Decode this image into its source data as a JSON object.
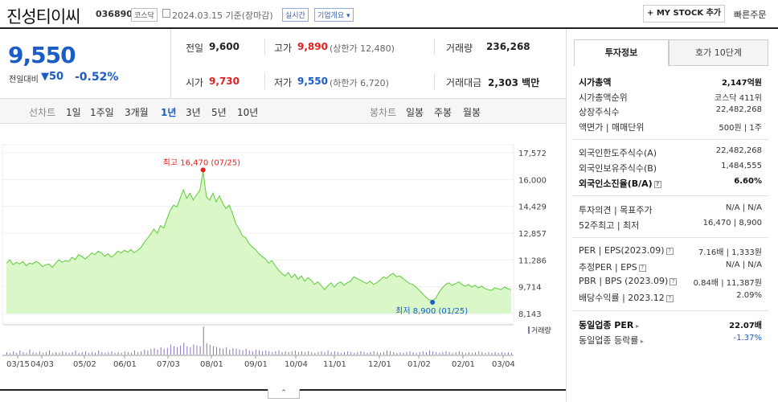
{
  "header": {
    "title": "진성티이씨",
    "code": "036890",
    "market_tag": "코스닥",
    "date": "2024.03.15",
    "date_suffix": "기준(장마감)",
    "realtime_tag": "실시간",
    "overview_dropdown": "기업개요",
    "my_stock_button": "+ MY STOCK 추가",
    "quick_order": "빠른주문"
  },
  "quote": {
    "price": "9,550",
    "change_label": "전일대비",
    "change_value": "50",
    "change_percent": "-0.52%",
    "prev_close_label": "전일",
    "prev_close": "9,600",
    "high_label": "고가",
    "high": "9,890",
    "upper_limit": "(상한가 12,480)",
    "volume_label": "거래량",
    "volume": "236,268",
    "open_label": "시가",
    "open": "9,730",
    "low_label": "저가",
    "low": "9,550",
    "lower_limit": "(하한가 6,720)",
    "amount_label": "거래대금",
    "amount": "2,303",
    "amount_unit": "백만"
  },
  "chart_tabs": {
    "line_chart_label": "선차트",
    "periods": [
      "1일",
      "1주일",
      "3개월",
      "1년",
      "3년",
      "5년",
      "10년"
    ],
    "selected": "1년",
    "candle_label": "봉차트",
    "candle_periods": [
      "일봉",
      "주봉",
      "월봉"
    ]
  },
  "chart_data": {
    "type": "area",
    "y_ticks": [
      "17,572",
      "16,000",
      "14,429",
      "12,857",
      "11,286",
      "9,714",
      "8,143"
    ],
    "ylim": [
      8143,
      17572
    ],
    "x_ticks": [
      "03/15",
      "04/03",
      "05/02",
      "06/01",
      "07/03",
      "08/01",
      "09/01",
      "10/04",
      "11/01",
      "12/01",
      "01/02",
      "02/01",
      "03/04"
    ],
    "high_annotation": "최고 16,470 (07/25)",
    "low_annotation": "최저 8,900 (01/25)",
    "high_value": 16470,
    "low_value": 8900,
    "volume_legend": "거래량",
    "series": [
      {
        "values": [
          11100,
          11300,
          11000,
          11150,
          11050,
          11200,
          10950,
          11100,
          11050,
          11200,
          11100,
          10900,
          11000,
          11050,
          10850,
          11100,
          11300,
          11150,
          11250,
          11200,
          11450,
          11300,
          11600,
          11500,
          11350,
          11500,
          11700,
          11600,
          11800,
          11700,
          11500,
          11650,
          11450,
          11600,
          11800,
          11700,
          11850,
          11750,
          11900,
          11700,
          11850,
          12000,
          12300,
          12550,
          12800,
          13100,
          12850,
          13300,
          13150,
          13700,
          14200,
          14500,
          14400,
          14900,
          15400,
          14900,
          15200,
          14800,
          15100,
          15350,
          16470,
          15000,
          14800,
          15200,
          14700,
          15050,
          14600,
          14300,
          14500,
          14000,
          13400,
          13100,
          12700,
          12600,
          12250,
          12050,
          11900,
          11650,
          11500,
          11350,
          11100,
          11250,
          10950,
          10700,
          10500,
          10350,
          10550,
          10250,
          10450,
          10150,
          10350,
          10050,
          10250,
          10100,
          9850,
          10000,
          9800,
          9550,
          9750,
          9950,
          9700,
          9900,
          10000,
          9800,
          9950,
          10050,
          10300,
          10200,
          10100,
          10000,
          9900,
          10050,
          9850,
          9950,
          10100,
          10300,
          10200,
          10400,
          10500,
          10300,
          10350,
          10200,
          10050,
          9900,
          9850,
          9700,
          9500,
          9300,
          9100,
          8950,
          8900,
          9050,
          9400,
          9650,
          9850,
          9950,
          9800,
          9900,
          10000,
          9850,
          9750,
          9850,
          9700,
          9800,
          9650,
          9750,
          9600,
          9550,
          9500,
          9650,
          9600,
          9550,
          9700,
          9600,
          9550
        ]
      }
    ],
    "volume": [
      3,
      2,
      4,
      2,
      5,
      3,
      2,
      6,
      3,
      2,
      4,
      2,
      3,
      5,
      2,
      3,
      2,
      4,
      3,
      2,
      3,
      5,
      2,
      3,
      4,
      2,
      3,
      2,
      5,
      3,
      2,
      3,
      4,
      2,
      3,
      2,
      4,
      3,
      2,
      5,
      3,
      4,
      6,
      5,
      7,
      8,
      6,
      9,
      7,
      8,
      12,
      10,
      9,
      11,
      14,
      10,
      9,
      12,
      11,
      10,
      34,
      14,
      12,
      10,
      9,
      8,
      7,
      9,
      6,
      8,
      7,
      6,
      5,
      7,
      5,
      4,
      6,
      5,
      4,
      5,
      4,
      3,
      4,
      5,
      3,
      4,
      3,
      4,
      5,
      3,
      4,
      3,
      4,
      3,
      2,
      3,
      4,
      3,
      5,
      3,
      4,
      3,
      2,
      3,
      4,
      3,
      2,
      3,
      4,
      3,
      2,
      3,
      4,
      3,
      2,
      3,
      5,
      4,
      3,
      2,
      3,
      2,
      3,
      4,
      3,
      2,
      3,
      4,
      3,
      5,
      4,
      3,
      2,
      3,
      4,
      3,
      2,
      3,
      4,
      3,
      2,
      3,
      2,
      3,
      4,
      3,
      2,
      3,
      2,
      3,
      2,
      3,
      2,
      3,
      2
    ]
  },
  "side_panel": {
    "tabs": [
      "투자정보",
      "호가 10단계"
    ],
    "market_cap_label": "시가총액",
    "market_cap": "2,147억원",
    "market_cap_rank_label": "시가총액순위",
    "market_cap_rank": "코스닥 411위",
    "shares_label": "상장주식수",
    "shares": "22,482,268",
    "par_label": "액면가 | 매매단위",
    "par": "500원 | 1주",
    "foreign_limit_label": "외국인한도주식수(A)",
    "foreign_limit": "22,482,268",
    "foreign_hold_label": "외국인보유주식수(B)",
    "foreign_hold": "1,484,555",
    "foreign_rate_label": "외국인소진율(B/A)",
    "foreign_rate": "6.60%",
    "opinion_label": "투자의견 | 목표주가",
    "opinion": "N/A | N/A",
    "week52_label": "52주최고 | 최저",
    "week52": "16,470 | 8,900",
    "per_label": "PER | EPS(2023.09)",
    "per": "7.16배 | 1,333원",
    "est_per_label": "추정PER | EPS",
    "est_per": "N/A | N/A",
    "pbr_label": "PBR | BPS (2023.09)",
    "pbr": "0.84배 | 11,387원",
    "dividend_label": "배당수익률 | 2023.12",
    "dividend": "2.09%",
    "sector_per_label": "동일업종 PER",
    "sector_per": "22.07배",
    "sector_rate_label": "동일업종 등락률",
    "sector_rate": "-1.37%"
  }
}
